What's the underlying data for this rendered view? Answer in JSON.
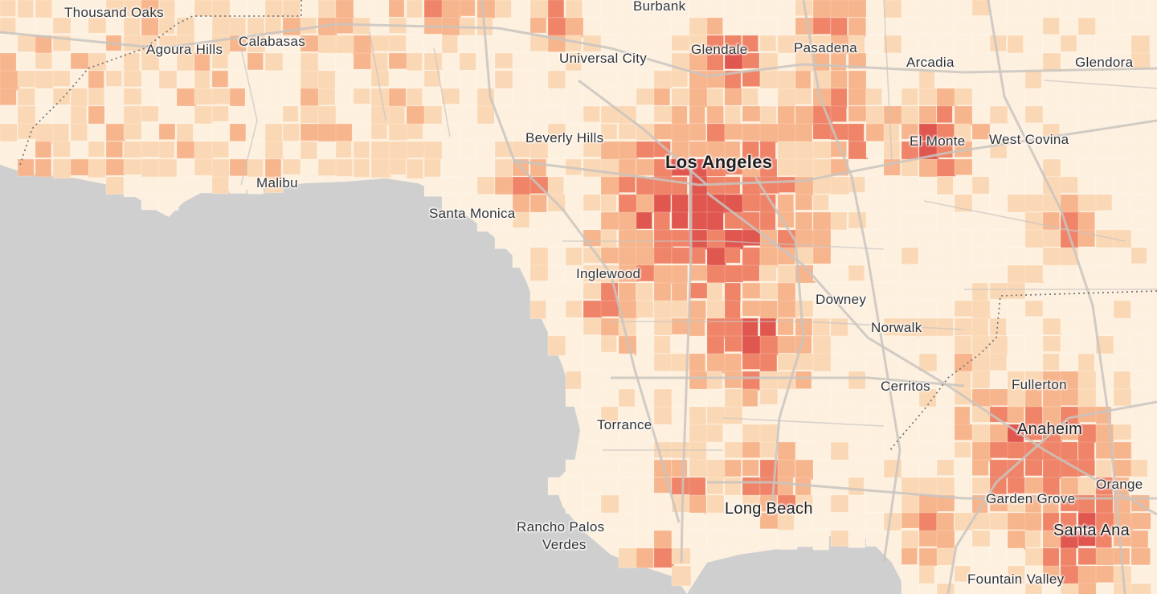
{
  "map": {
    "colors": {
      "ocean": "#cfcfcf",
      "land_lowest": "#fdf0df",
      "land_low": "#fbd8b5",
      "land_mid": "#f7b58d",
      "land_high": "#ef8469",
      "land_highest": "#e0574f",
      "roads": "#c9c4c0"
    },
    "labels": {
      "thousand_oaks": "Thousand Oaks",
      "burbank": "Burbank",
      "agoura_hills": "Agoura Hills",
      "calabasas": "Calabasas",
      "universal_city": "Universal City",
      "glendale": "Glendale",
      "pasadena": "Pasadena",
      "arcadia": "Arcadia",
      "glendora": "Glendora",
      "beverly_hills": "Beverly Hills",
      "los_angeles": "Los Angeles",
      "el_monte": "El Monte",
      "west_covina": "West Covina",
      "malibu": "Malibu",
      "santa_monica": "Santa Monica",
      "inglewood": "Inglewood",
      "downey": "Downey",
      "norwalk": "Norwalk",
      "cerritos": "Cerritos",
      "fullerton": "Fullerton",
      "torrance": "Torrance",
      "anaheim": "Anaheim",
      "orange": "Orange",
      "garden_grove": "Garden Grove",
      "long_beach": "Long Beach",
      "rancho_palos_verdes_1": "Rancho Palos",
      "rancho_palos_verdes_2": "Verdes",
      "santa_ana": "Santa Ana",
      "fountain_valley": "Fountain Valley"
    }
  }
}
